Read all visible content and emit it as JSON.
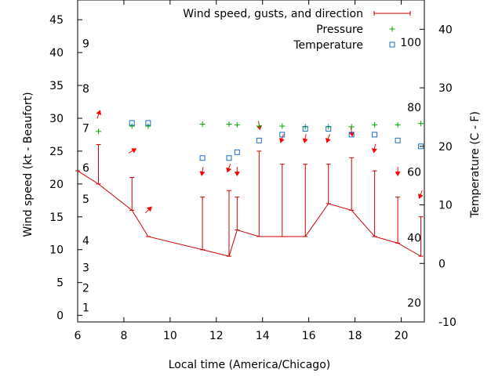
{
  "chart_data": {
    "type": "line",
    "xlabel": "Local time (America/Chicago)",
    "ylabel": "Wind speed (kt - Beaufort)",
    "y2label": "Temperature (C - F)",
    "xlim": [
      6,
      21
    ],
    "ylim": [
      -1,
      48
    ],
    "y2lim": [
      -10,
      45
    ],
    "x_ticks": [
      6,
      8,
      10,
      12,
      14,
      16,
      18,
      20
    ],
    "y_ticks": [
      0,
      5,
      10,
      15,
      20,
      25,
      30,
      35,
      40,
      45
    ],
    "y2_ticks": [
      -10,
      0,
      10,
      20,
      30,
      40
    ],
    "beaufort_labels": [
      {
        "text": "1",
        "y": 1.2
      },
      {
        "text": "2",
        "y": 4.2
      },
      {
        "text": "3",
        "y": 7.3
      },
      {
        "text": "4",
        "y": 11.4
      },
      {
        "text": "5",
        "y": 17.7
      },
      {
        "text": "6",
        "y": 22.5
      },
      {
        "text": "7",
        "y": 28.5
      },
      {
        "text": "8",
        "y": 34.5
      },
      {
        "text": "9",
        "y": 41.4
      }
    ],
    "fahrenheit_labels": [
      {
        "text": "20",
        "y": -6.7
      },
      {
        "text": "40",
        "y": 4.4
      },
      {
        "text": "60",
        "y": 15.6
      },
      {
        "text": "80",
        "y": 26.7
      },
      {
        "text": "100",
        "y": 37.8
      }
    ],
    "grid": false,
    "legend_position": "top-right",
    "colors": {
      "wind": "#cc0000",
      "pressure": "#00aa00",
      "temperature": "#1a6fc4",
      "arrow": "#ff0000"
    },
    "series": [
      {
        "name": "Wind speed, gusts, and direction",
        "axis": "y",
        "points": [
          {
            "x": 6.0,
            "y": 22,
            "gust": null
          },
          {
            "x": 6.9,
            "y": 20,
            "gust": 26
          },
          {
            "x": 8.35,
            "y": 16,
            "gust": 21
          },
          {
            "x": 9.05,
            "y": 12,
            "gust": null
          },
          {
            "x": 11.4,
            "y": 10,
            "gust": 18
          },
          {
            "x": 12.55,
            "y": 9,
            "gust": 19
          },
          {
            "x": 12.9,
            "y": 13,
            "gust": 18
          },
          {
            "x": 13.85,
            "y": 12,
            "gust": 25
          },
          {
            "x": 14.85,
            "y": 12,
            "gust": 23
          },
          {
            "x": 15.85,
            "y": 12,
            "gust": 23
          },
          {
            "x": 16.85,
            "y": 17,
            "gust": 23
          },
          {
            "x": 17.85,
            "y": 16,
            "gust": 24
          },
          {
            "x": 18.85,
            "y": 12,
            "gust": 22
          },
          {
            "x": 19.85,
            "y": 11,
            "gust": 18
          },
          {
            "x": 20.85,
            "y": 9,
            "gust": 15
          }
        ]
      },
      {
        "name": "Pressure",
        "axis": "y",
        "points": [
          {
            "x": 6.9,
            "y": 28.0
          },
          {
            "x": 8.35,
            "y": 28.8
          },
          {
            "x": 9.05,
            "y": 28.8
          },
          {
            "x": 11.4,
            "y": 29.1
          },
          {
            "x": 12.55,
            "y": 29.1
          },
          {
            "x": 12.9,
            "y": 29.0
          },
          {
            "x": 13.85,
            "y": 28.8
          },
          {
            "x": 14.85,
            "y": 28.8
          },
          {
            "x": 15.85,
            "y": 28.7
          },
          {
            "x": 16.85,
            "y": 28.7
          },
          {
            "x": 17.85,
            "y": 28.7
          },
          {
            "x": 18.85,
            "y": 29.0
          },
          {
            "x": 19.85,
            "y": 29.0
          },
          {
            "x": 20.85,
            "y": 29.2
          }
        ]
      },
      {
        "name": "Temperature",
        "axis": "y2",
        "points": [
          {
            "x": 8.35,
            "y": 24.0
          },
          {
            "x": 9.05,
            "y": 24.0
          },
          {
            "x": 11.4,
            "y": 18.0
          },
          {
            "x": 12.55,
            "y": 18.0
          },
          {
            "x": 12.9,
            "y": 19.0
          },
          {
            "x": 13.85,
            "y": 21.0
          },
          {
            "x": 14.85,
            "y": 22.0
          },
          {
            "x": 15.85,
            "y": 23.0
          },
          {
            "x": 16.85,
            "y": 23.0
          },
          {
            "x": 17.85,
            "y": 22.0
          },
          {
            "x": 18.85,
            "y": 22.0
          },
          {
            "x": 19.85,
            "y": 21.0
          },
          {
            "x": 20.85,
            "y": 20.0
          }
        ]
      }
    ],
    "wind_arrows": [
      {
        "x": 6.9,
        "y": 30.5,
        "dir_deg": 20
      },
      {
        "x": 8.35,
        "y": 25.0,
        "dir_deg": 60
      },
      {
        "x": 9.05,
        "y": 16.0,
        "dir_deg": 45
      },
      {
        "x": 11.4,
        "y": 22.0,
        "dir_deg": 190
      },
      {
        "x": 12.55,
        "y": 22.5,
        "dir_deg": 200
      },
      {
        "x": 12.9,
        "y": 22.0,
        "dir_deg": 180
      },
      {
        "x": 13.85,
        "y": 29.0,
        "dir_deg": 170
      },
      {
        "x": 14.85,
        "y": 27.0,
        "dir_deg": 200
      },
      {
        "x": 15.85,
        "y": 27.0,
        "dir_deg": 190
      },
      {
        "x": 16.85,
        "y": 27.0,
        "dir_deg": 200
      },
      {
        "x": 17.85,
        "y": 28.0,
        "dir_deg": 170
      },
      {
        "x": 18.85,
        "y": 25.5,
        "dir_deg": 190
      },
      {
        "x": 19.85,
        "y": 22.0,
        "dir_deg": 180
      },
      {
        "x": 20.85,
        "y": 18.5,
        "dir_deg": 200
      }
    ]
  }
}
